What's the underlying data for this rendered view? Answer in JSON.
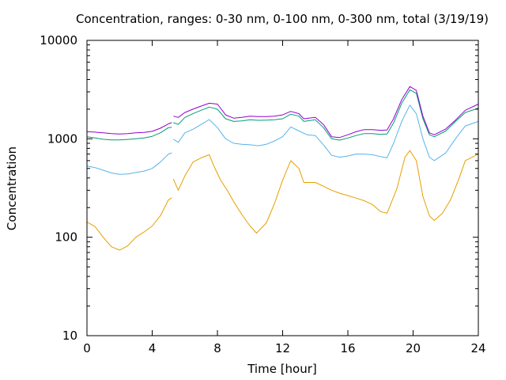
{
  "chart_data": {
    "type": "line",
    "title": "Concentration, ranges: 0-30 nm, 0-100 nm, 0-300 nm, total (3/19/19)",
    "xlabel": "Time [hour]",
    "ylabel": "Concentration",
    "xlim": [
      0,
      24
    ],
    "ylim": [
      10,
      10000
    ],
    "yscale": "log",
    "x_ticks": [
      "0",
      "4",
      "8",
      "12",
      "16",
      "20",
      "24"
    ],
    "y_ticks": [
      "10",
      "100",
      "1000",
      "10000"
    ],
    "grid": false,
    "legend": "none",
    "series": [
      {
        "color": "#e69f00",
        "segments": [
          [
            [
              0,
              143
            ],
            [
              0.5,
              128
            ],
            [
              1,
              100
            ],
            [
              1.5,
              80
            ],
            [
              2,
              74
            ],
            [
              2.5,
              82
            ],
            [
              3,
              100
            ],
            [
              3.5,
              113
            ],
            [
              4,
              130
            ],
            [
              4.5,
              165
            ],
            [
              5,
              240
            ],
            [
              5.2,
              252
            ]
          ],
          [
            [
              5.3,
              390
            ],
            [
              5.6,
              300
            ],
            [
              6,
              420
            ],
            [
              6.5,
              580
            ],
            [
              7,
              640
            ],
            [
              7.5,
              690
            ],
            [
              7.8,
              520
            ],
            [
              8.2,
              380
            ],
            [
              8.6,
              300
            ],
            [
              9,
              230
            ],
            [
              9.5,
              170
            ],
            [
              10,
              130
            ],
            [
              10.4,
              110
            ],
            [
              11,
              140
            ],
            [
              11.5,
              220
            ],
            [
              12,
              380
            ],
            [
              12.5,
              600
            ],
            [
              13,
              500
            ],
            [
              13.3,
              360
            ],
            [
              14,
              360
            ],
            [
              14.5,
              330
            ],
            [
              15,
              300
            ],
            [
              15.5,
              280
            ],
            [
              16,
              265
            ],
            [
              16.5,
              250
            ],
            [
              17,
              235
            ],
            [
              17.5,
              215
            ],
            [
              18,
              182
            ],
            [
              18.4,
              175
            ],
            [
              19,
              310
            ],
            [
              19.5,
              650
            ],
            [
              19.8,
              760
            ],
            [
              20.2,
              600
            ],
            [
              20.6,
              260
            ],
            [
              21,
              165
            ],
            [
              21.3,
              148
            ],
            [
              21.8,
              175
            ],
            [
              22.3,
              240
            ],
            [
              22.8,
              390
            ],
            [
              23.2,
              600
            ],
            [
              24,
              700
            ]
          ]
        ]
      },
      {
        "color": "#56b4e9",
        "segments": [
          [
            [
              0,
              530
            ],
            [
              0.5,
              510
            ],
            [
              1,
              480
            ],
            [
              1.5,
              450
            ],
            [
              2,
              435
            ],
            [
              2.5,
              440
            ],
            [
              3,
              455
            ],
            [
              3.5,
              470
            ],
            [
              4,
              500
            ],
            [
              4.5,
              580
            ],
            [
              5,
              700
            ],
            [
              5.2,
              720
            ]
          ],
          [
            [
              5.3,
              990
            ],
            [
              5.6,
              920
            ],
            [
              6,
              1150
            ],
            [
              6.5,
              1250
            ],
            [
              7,
              1400
            ],
            [
              7.5,
              1570
            ],
            [
              8,
              1300
            ],
            [
              8.5,
              1000
            ],
            [
              9,
              900
            ],
            [
              9.5,
              880
            ],
            [
              10,
              870
            ],
            [
              10.5,
              850
            ],
            [
              11,
              880
            ],
            [
              11.5,
              950
            ],
            [
              12,
              1050
            ],
            [
              12.5,
              1320
            ],
            [
              13,
              1200
            ],
            [
              13.5,
              1100
            ],
            [
              14,
              1080
            ],
            [
              14.5,
              870
            ],
            [
              15,
              680
            ],
            [
              15.5,
              650
            ],
            [
              16,
              670
            ],
            [
              16.5,
              700
            ],
            [
              17,
              700
            ],
            [
              17.5,
              690
            ],
            [
              18,
              660
            ],
            [
              18.4,
              640
            ],
            [
              18.8,
              900
            ],
            [
              19.3,
              1500
            ],
            [
              19.8,
              2200
            ],
            [
              20.2,
              1800
            ],
            [
              20.6,
              1000
            ],
            [
              21,
              650
            ],
            [
              21.3,
              600
            ],
            [
              22,
              720
            ],
            [
              22.6,
              1000
            ],
            [
              23.2,
              1350
            ],
            [
              24,
              1500
            ]
          ]
        ]
      },
      {
        "color": "#009e73",
        "segments": [
          [
            [
              0,
              1050
            ],
            [
              0.5,
              1020
            ],
            [
              1,
              990
            ],
            [
              1.5,
              975
            ],
            [
              2,
              975
            ],
            [
              2.5,
              985
            ],
            [
              3,
              1000
            ],
            [
              3.5,
              1020
            ],
            [
              4,
              1060
            ],
            [
              4.5,
              1150
            ],
            [
              5,
              1300
            ],
            [
              5.2,
              1310
            ]
          ],
          [
            [
              5.3,
              1460
            ],
            [
              5.6,
              1400
            ],
            [
              6,
              1650
            ],
            [
              6.5,
              1800
            ],
            [
              7,
              1950
            ],
            [
              7.5,
              2100
            ],
            [
              8,
              2000
            ],
            [
              8.5,
              1600
            ],
            [
              9,
              1500
            ],
            [
              9.5,
              1520
            ],
            [
              10,
              1560
            ],
            [
              10.5,
              1540
            ],
            [
              11,
              1550
            ],
            [
              11.5,
              1560
            ],
            [
              12,
              1600
            ],
            [
              12.5,
              1780
            ],
            [
              13,
              1700
            ],
            [
              13.3,
              1500
            ],
            [
              14,
              1560
            ],
            [
              14.5,
              1300
            ],
            [
              15,
              1000
            ],
            [
              15.5,
              970
            ],
            [
              16,
              1020
            ],
            [
              16.5,
              1080
            ],
            [
              17,
              1130
            ],
            [
              17.5,
              1130
            ],
            [
              18,
              1110
            ],
            [
              18.4,
              1120
            ],
            [
              18.8,
              1450
            ],
            [
              19.3,
              2300
            ],
            [
              19.8,
              3150
            ],
            [
              20.2,
              2900
            ],
            [
              20.6,
              1600
            ],
            [
              21,
              1100
            ],
            [
              21.3,
              1050
            ],
            [
              22,
              1200
            ],
            [
              22.6,
              1500
            ],
            [
              23.2,
              1850
            ],
            [
              24,
              2050
            ]
          ]
        ]
      },
      {
        "color": "#9400d3",
        "segments": [
          [
            [
              0,
              1180
            ],
            [
              0.5,
              1170
            ],
            [
              1,
              1150
            ],
            [
              1.5,
              1130
            ],
            [
              2,
              1120
            ],
            [
              2.5,
              1130
            ],
            [
              3,
              1150
            ],
            [
              3.5,
              1160
            ],
            [
              4,
              1190
            ],
            [
              4.5,
              1280
            ],
            [
              5,
              1420
            ],
            [
              5.2,
              1460
            ]
          ],
          [
            [
              5.3,
              1700
            ],
            [
              5.6,
              1650
            ],
            [
              6,
              1850
            ],
            [
              6.5,
              2000
            ],
            [
              7,
              2150
            ],
            [
              7.5,
              2300
            ],
            [
              8,
              2250
            ],
            [
              8.5,
              1750
            ],
            [
              9,
              1620
            ],
            [
              9.5,
              1650
            ],
            [
              10,
              1700
            ],
            [
              10.5,
              1680
            ],
            [
              11,
              1680
            ],
            [
              11.5,
              1700
            ],
            [
              12,
              1750
            ],
            [
              12.5,
              1900
            ],
            [
              13,
              1800
            ],
            [
              13.3,
              1600
            ],
            [
              14,
              1650
            ],
            [
              14.5,
              1400
            ],
            [
              15,
              1050
            ],
            [
              15.5,
              1030
            ],
            [
              16,
              1100
            ],
            [
              16.5,
              1180
            ],
            [
              17,
              1240
            ],
            [
              17.5,
              1240
            ],
            [
              18,
              1220
            ],
            [
              18.4,
              1230
            ],
            [
              18.8,
              1600
            ],
            [
              19.3,
              2500
            ],
            [
              19.8,
              3400
            ],
            [
              20.2,
              3100
            ],
            [
              20.6,
              1700
            ],
            [
              21,
              1150
            ],
            [
              21.3,
              1100
            ],
            [
              22,
              1260
            ],
            [
              22.6,
              1550
            ],
            [
              23.2,
              1950
            ],
            [
              24,
              2250
            ]
          ]
        ]
      }
    ]
  }
}
